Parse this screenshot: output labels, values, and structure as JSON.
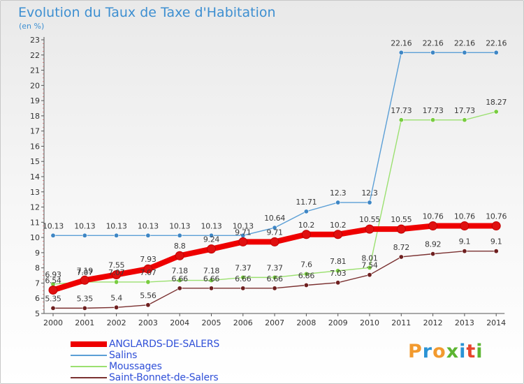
{
  "title": "Evolution du Taux de Taxe d'Habitation",
  "unit": "(en %)",
  "logo": {
    "letters": [
      "P",
      "r",
      "o",
      "x",
      "i",
      "t",
      "i"
    ],
    "colors": [
      "#f29a2e",
      "#2a93d5",
      "#f29a2e",
      "#5cb531",
      "#2a93d5",
      "#e7452c",
      "#5cb531"
    ]
  },
  "chart_data": {
    "type": "line",
    "title": "Evolution du Taux de Taxe d'Habitation",
    "ylabel": "(en %)",
    "xlabel": "",
    "ylim": [
      5,
      23
    ],
    "yticks": [
      5,
      6,
      7,
      8,
      9,
      10,
      11,
      12,
      13,
      14,
      15,
      16,
      17,
      18,
      19,
      20,
      21,
      22,
      23
    ],
    "grid": false,
    "legend_position": "bottom-left",
    "x": [
      "2000",
      "2001",
      "2002",
      "2003",
      "2004",
      "2005",
      "2006",
      "2007",
      "2008",
      "2009",
      "2010",
      "2011",
      "2012",
      "2013",
      "2014"
    ],
    "series": [
      {
        "name": "ANGLARDS-DE-SALERS",
        "color": "#ee0000",
        "point_color": "#e01010",
        "values": [
          6.54,
          7.19,
          7.55,
          7.93,
          8.8,
          9.24,
          9.71,
          9.71,
          10.2,
          10.2,
          10.55,
          10.55,
          10.76,
          10.76,
          10.76
        ],
        "labels": [
          "6.54",
          "7.19",
          "7.55",
          "7.93",
          "8.8",
          "9.24",
          "9.71",
          "9.71",
          "10.2",
          "10.2",
          "10.55",
          "10.55",
          "10.76",
          "10.76",
          "10.76"
        ]
      },
      {
        "name": "Salins",
        "color": "#5b9fd6",
        "point_color": "#3e86c4",
        "values": [
          10.13,
          10.13,
          10.13,
          10.13,
          10.13,
          10.13,
          10.13,
          10.64,
          11.71,
          12.3,
          12.3,
          22.16,
          22.16,
          22.16,
          22.16
        ],
        "labels": [
          "10.13",
          "10.13",
          "10.13",
          "10.13",
          "10.13",
          "10.13",
          "10.13",
          "10.64",
          "11.71",
          "12.3",
          "12.3",
          "22.16",
          "22.16",
          "22.16",
          "22.16"
        ]
      },
      {
        "name": "Moussages",
        "color": "#9be070",
        "point_color": "#78cc3f",
        "values": [
          6.93,
          7.07,
          7.07,
          7.07,
          7.18,
          7.18,
          7.37,
          7.37,
          7.6,
          7.81,
          8.01,
          17.73,
          17.73,
          17.73,
          18.27
        ],
        "labels": [
          "6.93",
          "7.07",
          "7.07",
          "7.07",
          "7.18",
          "7.18",
          "7.37",
          "7.37",
          "7.6",
          "7.81",
          "8.01",
          "17.73",
          "17.73",
          "17.73",
          "18.27"
        ]
      },
      {
        "name": "Saint-Bonnet-de-Salers",
        "color": "#7a3030",
        "point_color": "#6e1f1f",
        "values": [
          5.35,
          5.35,
          5.4,
          5.56,
          6.66,
          6.66,
          6.66,
          6.66,
          6.86,
          7.03,
          7.54,
          8.72,
          8.92,
          9.1,
          9.1
        ],
        "labels": [
          "5.35",
          "5.35",
          "5.4",
          "5.56",
          "6.66",
          "6.66",
          "6.66",
          "6.66",
          "6.86",
          "7.03",
          "7.54",
          "8.72",
          "8.92",
          "9.1",
          "9.1"
        ]
      }
    ]
  }
}
